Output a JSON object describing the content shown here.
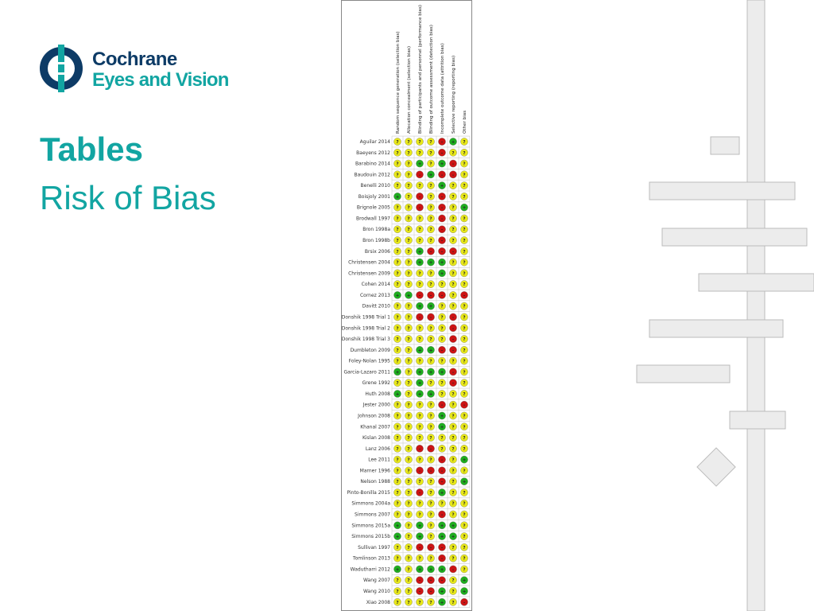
{
  "logo": {
    "line1": "Cochrane",
    "line2": "Eyes and Vision"
  },
  "heading": {
    "title": "Tables",
    "subtitle": "Risk of Bias"
  },
  "figure": {
    "columns": [
      "Random sequence generation (selection bias)",
      "Allocation concealment (selection bias)",
      "Blinding of participants and personnel (performance bias)",
      "Blinding of outcome assessment (detection bias)",
      "Incomplete outcome data (attrition bias)",
      "Selective reporting (reporting bias)",
      "Other bias"
    ],
    "rows": [
      {
        "study": "Aguilar 2014",
        "judgements": [
          "?",
          "?",
          "?",
          "?",
          "-",
          "+",
          "?"
        ]
      },
      {
        "study": "Baeyens 2012",
        "judgements": [
          "?",
          "?",
          "?",
          "?",
          "-",
          "?",
          "?"
        ]
      },
      {
        "study": "Barabino 2014",
        "judgements": [
          "?",
          "?",
          "+",
          "?",
          "+",
          "-",
          "?"
        ]
      },
      {
        "study": "Baudouin 2012",
        "judgements": [
          "?",
          "?",
          "-",
          "+",
          "-",
          "-",
          "?"
        ]
      },
      {
        "study": "Benelli 2010",
        "judgements": [
          "?",
          "?",
          "?",
          "?",
          "+",
          "?",
          "?"
        ]
      },
      {
        "study": "Boisjoly 2001",
        "judgements": [
          "+",
          "?",
          "-",
          "?",
          "-",
          "?",
          "?"
        ]
      },
      {
        "study": "Brignole 2005",
        "judgements": [
          "?",
          "?",
          "-",
          "?",
          "-",
          "?",
          "+"
        ]
      },
      {
        "study": "Brodwall 1997",
        "judgements": [
          "?",
          "?",
          "?",
          "?",
          "-",
          "?",
          "?"
        ]
      },
      {
        "study": "Bron 1998a",
        "judgements": [
          "?",
          "?",
          "?",
          "?",
          "-",
          "?",
          "?"
        ]
      },
      {
        "study": "Bron 1998b",
        "judgements": [
          "?",
          "?",
          "?",
          "?",
          "-",
          "?",
          "?"
        ]
      },
      {
        "study": "Brsix 2006",
        "judgements": [
          "?",
          "?",
          "+",
          "-",
          "-",
          "-",
          "?"
        ]
      },
      {
        "study": "Christensen 2004",
        "judgements": [
          "?",
          "?",
          "+",
          "+",
          "+",
          "?",
          "?"
        ]
      },
      {
        "study": "Christensen 2009",
        "judgements": [
          "?",
          "?",
          "?",
          "?",
          "+",
          "?",
          "?"
        ]
      },
      {
        "study": "Cohen 2014",
        "judgements": [
          "?",
          "?",
          "?",
          "?",
          "?",
          "?",
          "?"
        ]
      },
      {
        "study": "Cornez 2013",
        "judgements": [
          "+",
          "+",
          "-",
          "-",
          "-",
          "?",
          "-"
        ]
      },
      {
        "study": "Davitt 2010",
        "judgements": [
          "?",
          "?",
          "+",
          "+",
          "?",
          "?",
          "?"
        ]
      },
      {
        "study": "Donshik 1998 Trial 1",
        "judgements": [
          "?",
          "?",
          "-",
          "-",
          "?",
          "-",
          "?"
        ]
      },
      {
        "study": "Donshik 1998 Trial 2",
        "judgements": [
          "?",
          "?",
          "?",
          "?",
          "?",
          "-",
          "?"
        ]
      },
      {
        "study": "Donshik 1998 Trial 3",
        "judgements": [
          "?",
          "?",
          "?",
          "?",
          "?",
          "-",
          "?"
        ]
      },
      {
        "study": "Dumbleton 2009",
        "judgements": [
          "?",
          "?",
          "+",
          "+",
          "-",
          "-",
          "?"
        ]
      },
      {
        "study": "Foley-Nolan 1995",
        "judgements": [
          "?",
          "?",
          "?",
          "?",
          "?",
          "?",
          "?"
        ]
      },
      {
        "study": "Garcia-Lazaro 2011",
        "judgements": [
          "+",
          "?",
          "+",
          "+",
          "+",
          "-",
          "?"
        ]
      },
      {
        "study": "Grene 1992",
        "judgements": [
          "?",
          "?",
          "+",
          "?",
          "?",
          "-",
          "?"
        ]
      },
      {
        "study": "Huth 2008",
        "judgements": [
          "+",
          "?",
          "+",
          "+",
          "?",
          "?",
          "?"
        ]
      },
      {
        "study": "Jester 2000",
        "judgements": [
          "?",
          "?",
          "?",
          "?",
          "-",
          "?",
          "-"
        ]
      },
      {
        "study": "Johnson 2008",
        "judgements": [
          "?",
          "?",
          "?",
          "?",
          "+",
          "?",
          "?"
        ]
      },
      {
        "study": "Khanal 2007",
        "judgements": [
          "?",
          "?",
          "?",
          "?",
          "+",
          "?",
          "?"
        ]
      },
      {
        "study": "Kislan 2008",
        "judgements": [
          "?",
          "?",
          "?",
          "?",
          "?",
          "?",
          "?"
        ]
      },
      {
        "study": "Lanz 2006",
        "judgements": [
          "?",
          "?",
          "-",
          "-",
          "?",
          "?",
          "?"
        ]
      },
      {
        "study": "Lee 2011",
        "judgements": [
          "?",
          "?",
          "?",
          "?",
          "-",
          "?",
          "+"
        ]
      },
      {
        "study": "Marner 1996",
        "judgements": [
          "?",
          "?",
          "-",
          "-",
          "-",
          "?",
          "?"
        ]
      },
      {
        "study": "Nelson 1988",
        "judgements": [
          "?",
          "?",
          "?",
          "?",
          "-",
          "?",
          "+"
        ]
      },
      {
        "study": "Pinto-Bonilla 2015",
        "judgements": [
          "?",
          "?",
          "-",
          "?",
          "+",
          "?",
          "?"
        ]
      },
      {
        "study": "Simmons 2004a",
        "judgements": [
          "?",
          "?",
          "?",
          "?",
          "?",
          "?",
          "?"
        ]
      },
      {
        "study": "Simmons 2007",
        "judgements": [
          "?",
          "?",
          "?",
          "?",
          "-",
          "?",
          "?"
        ]
      },
      {
        "study": "Simmons 2015a",
        "judgements": [
          "+",
          "?",
          "+",
          "?",
          "+",
          "+",
          "?"
        ]
      },
      {
        "study": "Simmons 2015b",
        "judgements": [
          "+",
          "?",
          "+",
          "?",
          "+",
          "+",
          "?"
        ]
      },
      {
        "study": "Sullivan 1997",
        "judgements": [
          "?",
          "?",
          "-",
          "-",
          "-",
          "?",
          "?"
        ]
      },
      {
        "study": "Tomlinson 2013",
        "judgements": [
          "?",
          "?",
          "?",
          "?",
          "-",
          "?",
          "?"
        ]
      },
      {
        "study": "Wadutharri 2012",
        "judgements": [
          "+",
          "?",
          "+",
          "+",
          "+",
          "-",
          "?"
        ]
      },
      {
        "study": "Wang 2007",
        "judgements": [
          "?",
          "?",
          "-",
          "-",
          "-",
          "?",
          "+"
        ]
      },
      {
        "study": "Wang 2010",
        "judgements": [
          "?",
          "?",
          "-",
          "-",
          "+",
          "?",
          "+"
        ]
      },
      {
        "study": "Xiao 2008",
        "judgements": [
          "?",
          "?",
          "?",
          "?",
          "+",
          "?",
          "-"
        ]
      }
    ]
  }
}
